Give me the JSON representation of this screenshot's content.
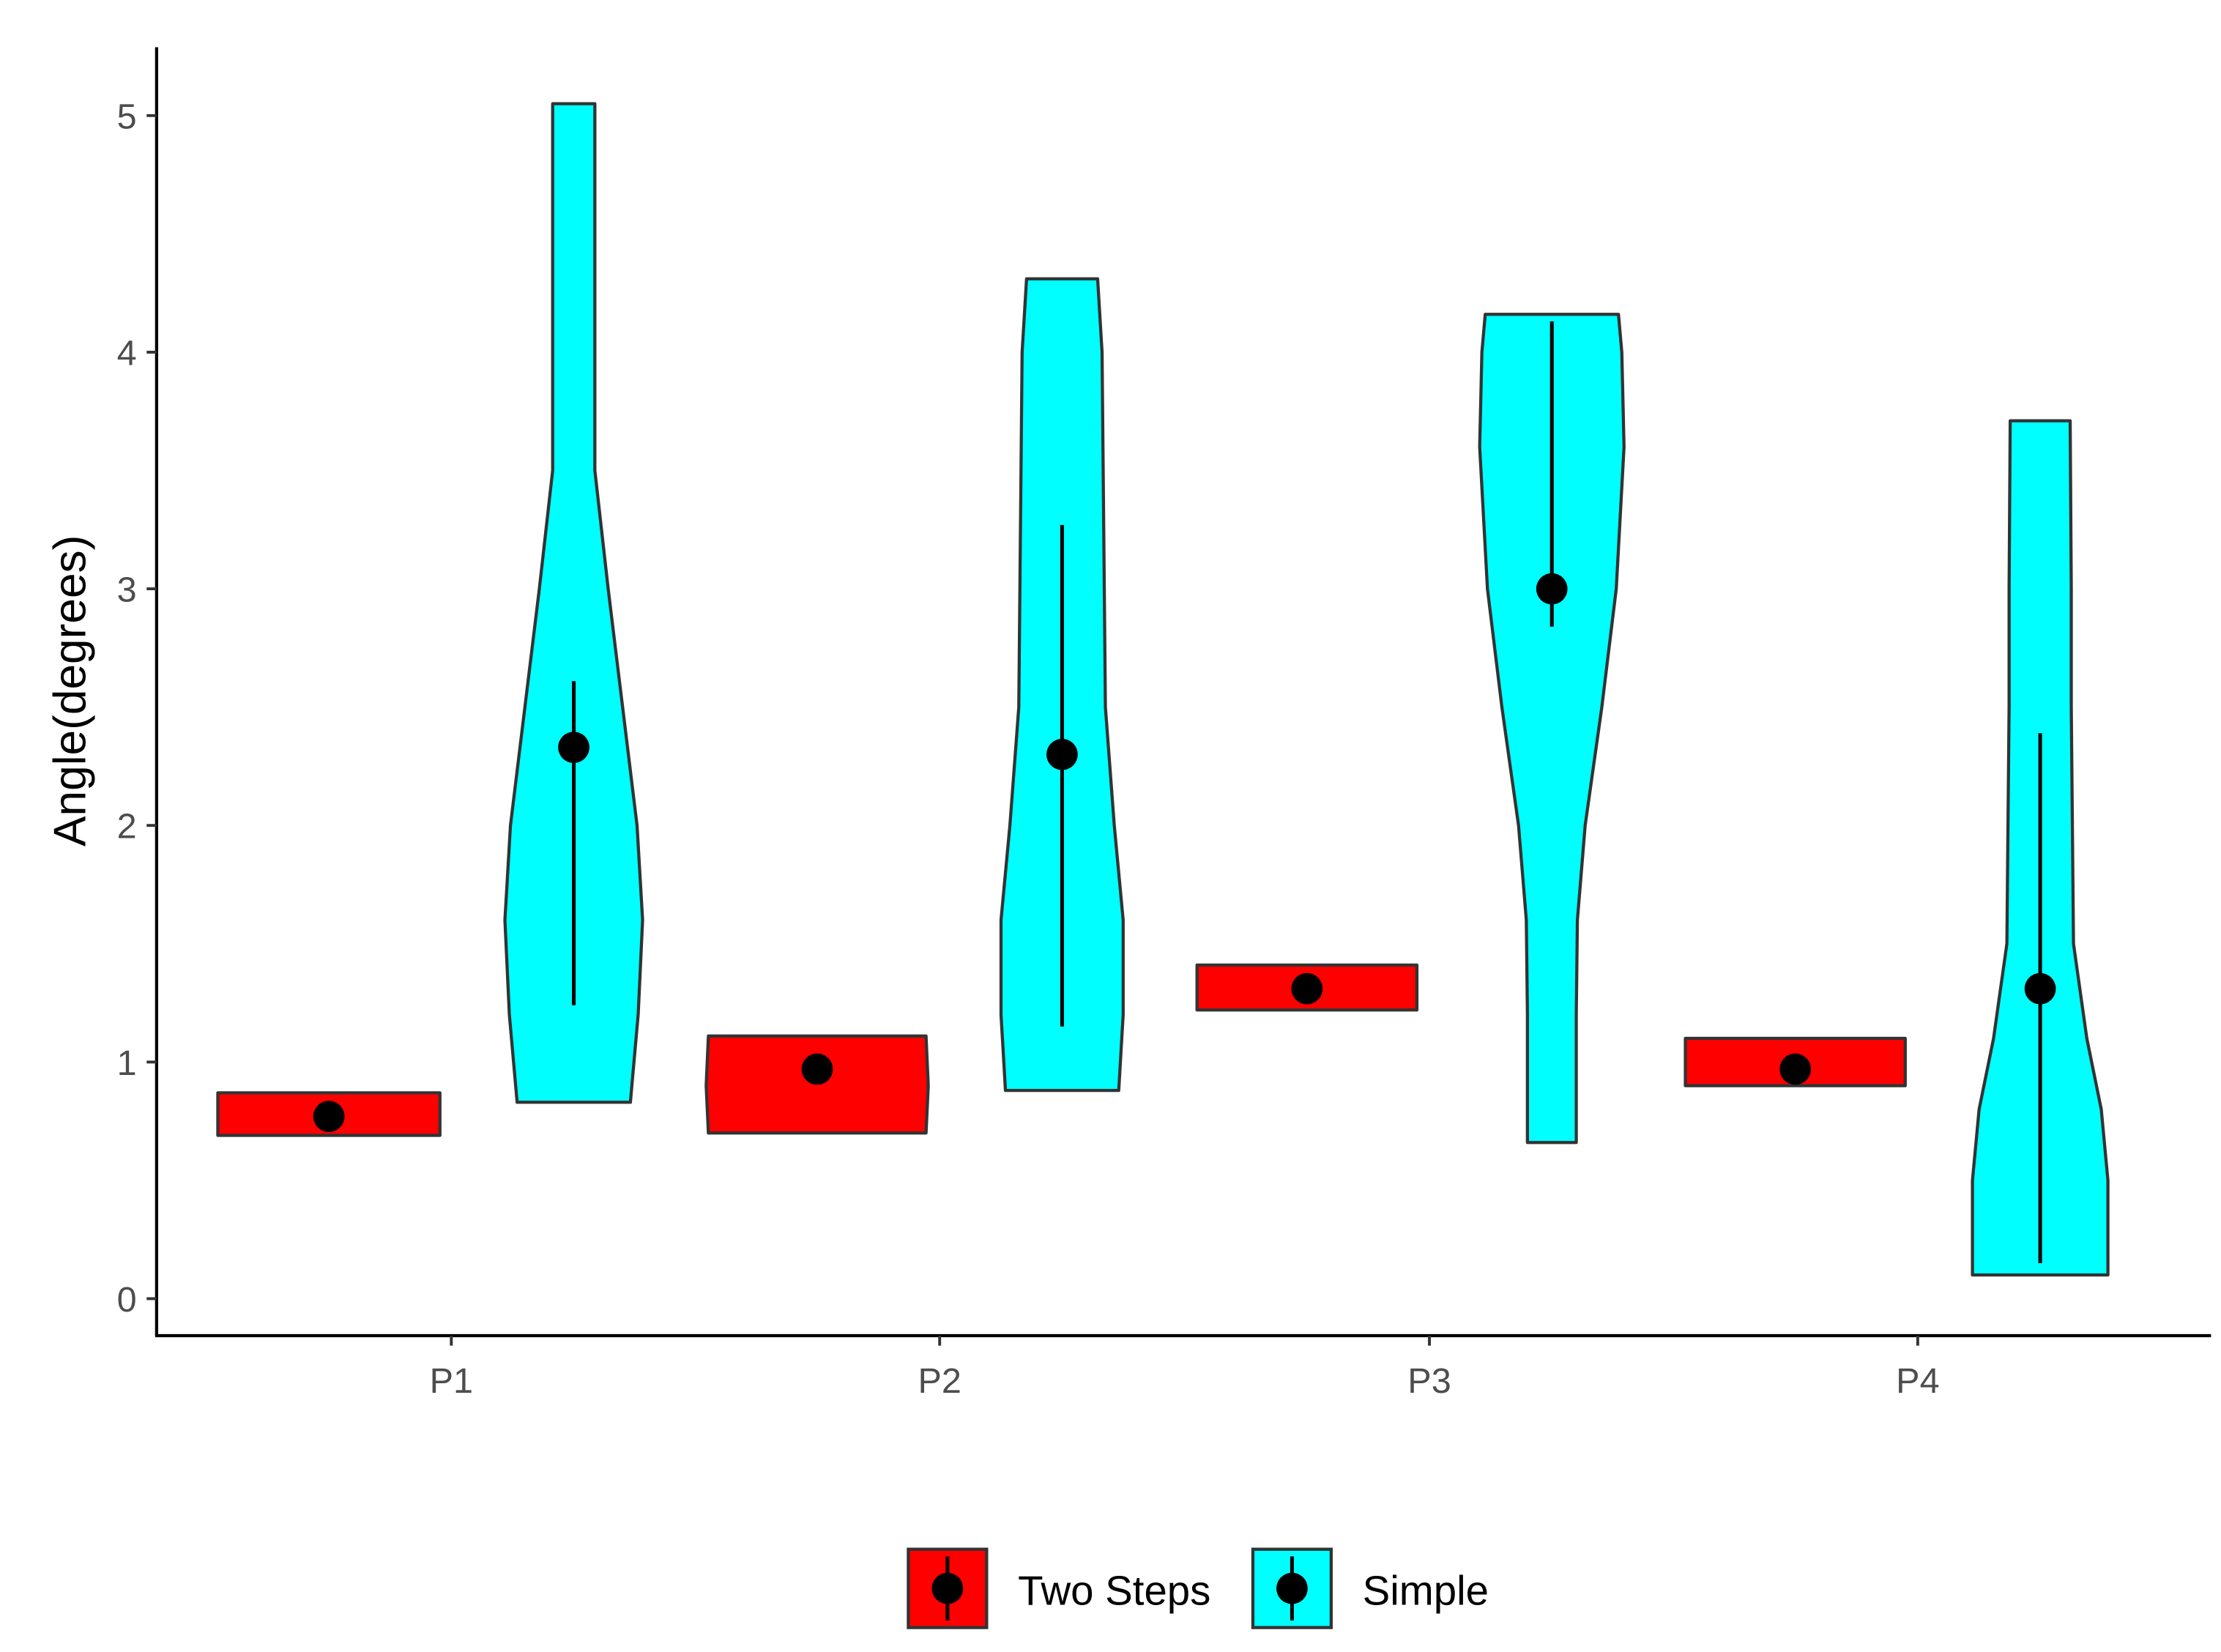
{
  "chart_data": {
    "type": "violin",
    "title": "",
    "xlabel": "",
    "ylabel": "Angle(degrees)",
    "ylim": [
      -0.15,
      5.3
    ],
    "yticks": [
      "0",
      "1",
      "2",
      "3",
      "4",
      "5"
    ],
    "categories": [
      "P1",
      "P2",
      "P3",
      "P4"
    ],
    "grid": false,
    "legend_position": "bottom",
    "colors": {
      "Two Steps": "#ff0000",
      "Simple": "#00ffff",
      "outline": "#333333",
      "point": "#000000"
    },
    "series": [
      {
        "name": "Two Steps",
        "violins": [
          {
            "category": "P1",
            "min": 0.69,
            "max": 0.87,
            "mean": 0.77,
            "err_low": 0.77,
            "err_high": 0.77,
            "profile": [
              [
                0.69,
                1
              ],
              [
                0.87,
                1
              ]
            ]
          },
          {
            "category": "P2",
            "min": 0.7,
            "max": 1.11,
            "mean": 0.97,
            "err_low": 0.97,
            "err_high": 0.97,
            "profile": [
              [
                0.7,
                0.98
              ],
              [
                0.9,
                1
              ],
              [
                1.11,
                0.98
              ]
            ]
          },
          {
            "category": "P3",
            "min": 1.22,
            "max": 1.41,
            "mean": 1.31,
            "err_low": 1.31,
            "err_high": 1.31,
            "profile": [
              [
                1.22,
                0.99
              ],
              [
                1.41,
                0.99
              ]
            ]
          },
          {
            "category": "P4",
            "min": 0.9,
            "max": 1.1,
            "mean": 0.97,
            "err_low": 0.97,
            "err_high": 0.97,
            "profile": [
              [
                0.9,
                0.99
              ],
              [
                1.1,
                0.99
              ]
            ]
          }
        ]
      },
      {
        "name": "Simple",
        "violins": [
          {
            "category": "P1",
            "min": 0.83,
            "max": 5.05,
            "mean": 2.33,
            "err_low": 1.24,
            "err_high": 2.61,
            "profile": [
              [
                0.83,
                0.51
              ],
              [
                1.2,
                0.58
              ],
              [
                1.6,
                0.62
              ],
              [
                2.0,
                0.57
              ],
              [
                2.5,
                0.44
              ],
              [
                3.0,
                0.31
              ],
              [
                3.5,
                0.19
              ],
              [
                4.0,
                0.19
              ],
              [
                4.5,
                0.19
              ],
              [
                5.05,
                0.19
              ]
            ]
          },
          {
            "category": "P2",
            "min": 0.88,
            "max": 4.31,
            "mean": 2.3,
            "err_low": 1.15,
            "err_high": 3.27,
            "profile": [
              [
                0.88,
                0.51
              ],
              [
                1.2,
                0.55
              ],
              [
                1.6,
                0.55
              ],
              [
                2.0,
                0.47
              ],
              [
                2.5,
                0.39
              ],
              [
                3.0,
                0.38
              ],
              [
                3.5,
                0.37
              ],
              [
                4.0,
                0.36
              ],
              [
                4.31,
                0.32
              ]
            ]
          },
          {
            "category": "P3",
            "min": 0.66,
            "max": 4.16,
            "mean": 3.0,
            "err_low": 2.84,
            "err_high": 4.13,
            "profile": [
              [
                0.66,
                0.22
              ],
              [
                1.2,
                0.22
              ],
              [
                1.6,
                0.23
              ],
              [
                2.0,
                0.3
              ],
              [
                2.5,
                0.45
              ],
              [
                3.0,
                0.58
              ],
              [
                3.6,
                0.65
              ],
              [
                4.0,
                0.63
              ],
              [
                4.16,
                0.6
              ]
            ]
          },
          {
            "category": "P4",
            "min": 0.1,
            "max": 3.71,
            "mean": 1.31,
            "err_low": 0.15,
            "err_high": 2.39,
            "profile": [
              [
                0.1,
                0.61
              ],
              [
                0.5,
                0.61
              ],
              [
                0.8,
                0.55
              ],
              [
                1.1,
                0.42
              ],
              [
                1.5,
                0.3
              ],
              [
                2.0,
                0.29
              ],
              [
                2.5,
                0.28
              ],
              [
                3.0,
                0.28
              ],
              [
                3.71,
                0.27
              ]
            ]
          }
        ]
      }
    ]
  }
}
